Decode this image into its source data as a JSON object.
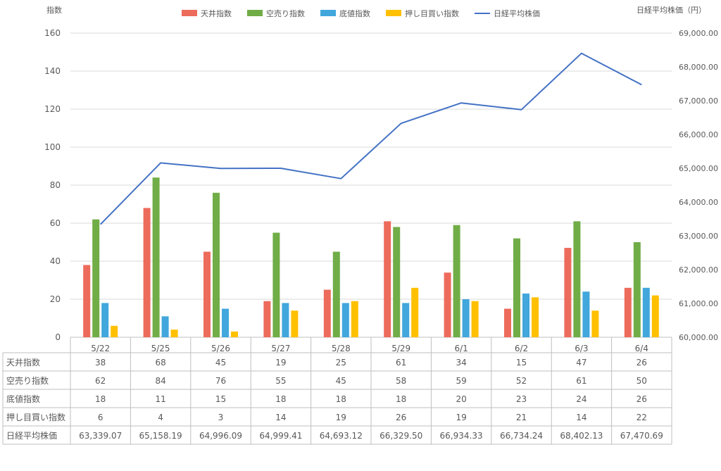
{
  "chart_data": {
    "type": "bar",
    "left_axis_label": "指数",
    "right_axis_label": "日経平均株価（円）",
    "categories": [
      "5/22",
      "5/25",
      "5/26",
      "5/27",
      "5/28",
      "5/29",
      "6/1",
      "6/2",
      "6/3",
      "6/4"
    ],
    "series": [
      {
        "name": "天井指数",
        "type": "bar",
        "axis": "left",
        "color": "#ED6B5B",
        "values": [
          38,
          68,
          45,
          19,
          25,
          61,
          34,
          15,
          47,
          26
        ]
      },
      {
        "name": "空売り指数",
        "type": "bar",
        "axis": "left",
        "color": "#70AD47",
        "values": [
          62,
          84,
          76,
          55,
          45,
          58,
          59,
          52,
          61,
          50
        ]
      },
      {
        "name": "底値指数",
        "type": "bar",
        "axis": "left",
        "color": "#41A7DC",
        "values": [
          18,
          11,
          15,
          18,
          18,
          18,
          20,
          23,
          24,
          26
        ]
      },
      {
        "name": "押し目買い指数",
        "type": "bar",
        "axis": "left",
        "color": "#FFC000",
        "values": [
          6,
          4,
          3,
          14,
          19,
          26,
          19,
          21,
          14,
          22
        ]
      },
      {
        "name": "日経平均株価",
        "type": "line",
        "axis": "right",
        "color": "#4472C4",
        "values": [
          63339.07,
          65158.19,
          64996.09,
          64999.41,
          64693.12,
          66329.5,
          66934.33,
          66734.24,
          68402.13,
          67470.69
        ]
      }
    ],
    "left_axis": {
      "min": 0,
      "max": 160,
      "step": 20,
      "tick_labels": [
        "0",
        "20",
        "40",
        "60",
        "80",
        "100",
        "120",
        "140",
        "160"
      ]
    },
    "right_axis": {
      "min": 60000,
      "max": 69000,
      "step": 1000,
      "tick_labels": [
        "60,000.00",
        "61,000.00",
        "62,000.00",
        "63,000.00",
        "64,000.00",
        "65,000.00",
        "66,000.00",
        "67,000.00",
        "68,000.00",
        "69,000.00"
      ]
    },
    "legend_position": "top",
    "grid": true,
    "data_table": {
      "rows": [
        {
          "label": "天井指数",
          "cells": [
            "38",
            "68",
            "45",
            "19",
            "25",
            "61",
            "34",
            "15",
            "47",
            "26"
          ]
        },
        {
          "label": "空売り指数",
          "cells": [
            "62",
            "84",
            "76",
            "55",
            "45",
            "58",
            "59",
            "52",
            "61",
            "50"
          ]
        },
        {
          "label": "底値指数",
          "cells": [
            "18",
            "11",
            "15",
            "18",
            "18",
            "18",
            "20",
            "23",
            "24",
            "26"
          ]
        },
        {
          "label": "押し目買い指数",
          "cells": [
            "6",
            "4",
            "3",
            "14",
            "19",
            "26",
            "19",
            "21",
            "14",
            "22"
          ]
        },
        {
          "label": "日経平均株価",
          "cells": [
            "63,339.07",
            "65,158.19",
            "64,996.09",
            "64,999.41",
            "64,693.12",
            "66,329.50",
            "66,934.33",
            "66,734.24",
            "68,402.13",
            "67,470.69"
          ]
        }
      ]
    }
  }
}
